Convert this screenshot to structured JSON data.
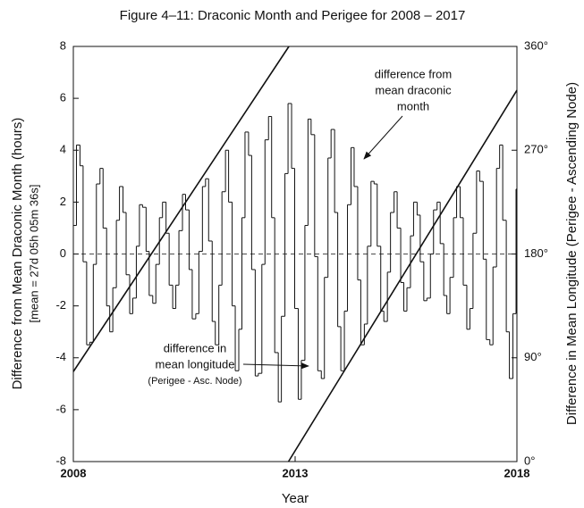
{
  "chart_data": {
    "type": "step",
    "title": "Figure 4–11: Draconic Month and Perigee for 2008 – 2017",
    "x_label": "Year",
    "y_label": "Difference from Mean Draconic Month (hours)",
    "y_sublabel": "[mean = 27d 05h 05m 36s]",
    "y2_label": "Difference in Mean Longitude (Perigee - Ascending Node)",
    "xlim": [
      2008,
      2018
    ],
    "xticks": [
      2008,
      2013,
      2018
    ],
    "ylim": [
      -8,
      8
    ],
    "yticks": [
      -8,
      -6,
      -4,
      -2,
      0,
      2,
      4,
      6,
      8
    ],
    "y2lim": [
      0,
      360
    ],
    "y2ticks": [
      {
        "value": 0,
        "label": "0°"
      },
      {
        "value": 90,
        "label": "90°"
      },
      {
        "value": 180,
        "label": "180°"
      },
      {
        "value": 270,
        "label": "270°"
      },
      {
        "value": 360,
        "label": "360°"
      }
    ],
    "zero_line": 0,
    "color": "#111111",
    "x": [
      2008.0,
      2008.07,
      2008.15,
      2008.22,
      2008.3,
      2008.37,
      2008.45,
      2008.52,
      2008.6,
      2008.67,
      2008.75,
      2008.82,
      2008.89,
      2008.97,
      2009.04,
      2009.12,
      2009.19,
      2009.27,
      2009.34,
      2009.42,
      2009.49,
      2009.56,
      2009.64,
      2009.71,
      2009.79,
      2009.86,
      2009.94,
      2010.01,
      2010.09,
      2010.16,
      2010.24,
      2010.31,
      2010.38,
      2010.46,
      2010.53,
      2010.61,
      2010.68,
      2010.76,
      2010.83,
      2010.91,
      2010.98,
      2011.05,
      2011.13,
      2011.2,
      2011.28,
      2011.35,
      2011.43,
      2011.5,
      2011.58,
      2011.65,
      2011.73,
      2011.8,
      2011.87,
      2011.95,
      2012.02,
      2012.1,
      2012.17,
      2012.25,
      2012.32,
      2012.4,
      2012.47,
      2012.54,
      2012.62,
      2012.69,
      2012.77,
      2012.84,
      2012.92,
      2012.99,
      2013.07,
      2013.14,
      2013.22,
      2013.29,
      2013.36,
      2013.44,
      2013.51,
      2013.59,
      2013.66,
      2013.74,
      2013.81,
      2013.89,
      2013.96,
      2014.03,
      2014.11,
      2014.18,
      2014.26,
      2014.33,
      2014.41,
      2014.48,
      2014.56,
      2014.63,
      2014.71,
      2014.78,
      2014.85,
      2014.93,
      2015.0,
      2015.08,
      2015.15,
      2015.23,
      2015.3,
      2015.38,
      2015.45,
      2015.52,
      2015.6,
      2015.67,
      2015.75,
      2015.82,
      2015.9,
      2015.97,
      2016.05,
      2016.12,
      2016.2,
      2016.27,
      2016.35,
      2016.42,
      2016.49,
      2016.57,
      2016.64,
      2016.72,
      2016.79,
      2016.87,
      2016.94,
      2017.01,
      2017.09,
      2017.16,
      2017.24,
      2017.31,
      2017.39,
      2017.46,
      2017.54,
      2017.61,
      2017.68,
      2017.76,
      2017.83,
      2017.91,
      2017.98
    ],
    "values": [
      1.1,
      4.2,
      3.4,
      -0.3,
      -3.5,
      -3.4,
      -0.4,
      2.7,
      3.3,
      1.0,
      -2.0,
      -3.0,
      -1.3,
      1.3,
      2.6,
      1.6,
      -0.8,
      -2.3,
      -1.7,
      0.3,
      1.9,
      1.8,
      0.1,
      -1.6,
      -1.9,
      -0.4,
      1.4,
      2.0,
      0.8,
      -1.2,
      -2.1,
      -1.2,
      0.9,
      2.3,
      1.7,
      -0.6,
      -2.5,
      -2.3,
      0.1,
      2.6,
      2.9,
      0.5,
      -2.6,
      -3.5,
      -1.2,
      2.4,
      4.0,
      2.0,
      -2.0,
      -4.5,
      -2.9,
      1.4,
      4.7,
      3.8,
      -0.6,
      -4.7,
      -4.6,
      -0.4,
      4.4,
      5.3,
      1.4,
      -3.8,
      -5.7,
      -2.4,
      3.1,
      5.8,
      3.3,
      -2.1,
      -5.6,
      -4.1,
      1.1,
      5.2,
      4.6,
      -0.1,
      -4.5,
      -4.8,
      -0.9,
      3.7,
      4.8,
      1.6,
      -2.8,
      -4.5,
      -2.2,
      1.9,
      4.1,
      2.6,
      -1.0,
      -3.5,
      -2.7,
      0.3,
      2.8,
      2.7,
      0.3,
      -2.2,
      -2.6,
      -0.7,
      1.6,
      2.4,
      1.0,
      -1.1,
      -2.2,
      -1.3,
      0.7,
      2.0,
      1.5,
      -0.3,
      -1.8,
      -1.7,
      0.0,
      1.7,
      2.0,
      0.4,
      -1.6,
      -2.3,
      -0.9,
      1.4,
      2.6,
      1.4,
      -1.2,
      -2.9,
      -2.1,
      0.8,
      3.2,
      2.8,
      -0.2,
      -3.3,
      -3.5,
      -0.5,
      3.3,
      4.2,
      1.3,
      -3.0,
      -4.8,
      -2.3,
      2.5
    ],
    "lines": [
      {
        "axis": "y2",
        "x": [
          2008,
          2012.86
        ],
        "values": [
          78,
          360
        ]
      },
      {
        "axis": "y2",
        "x": [
          2012.85,
          2018
        ],
        "values": [
          0,
          322
        ]
      }
    ],
    "annotations": [
      [
        "difference from",
        "mean draconic",
        "month"
      ],
      [
        "difference in",
        "mean longitude",
        "(Perigee - Asc. Node)"
      ]
    ]
  }
}
